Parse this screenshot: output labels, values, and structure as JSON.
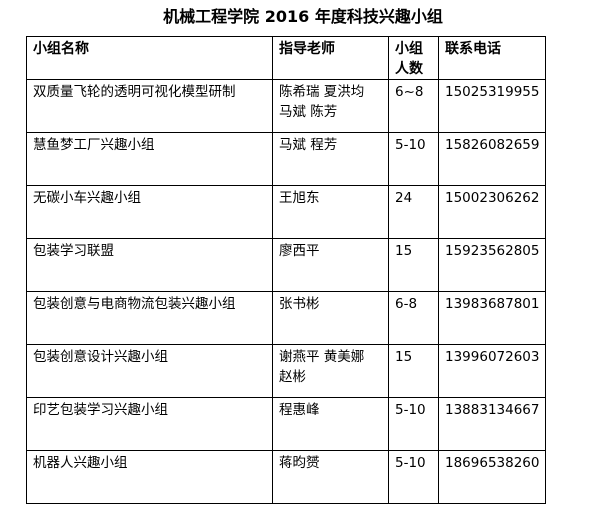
{
  "title": "机械工程学院 2016 年度科技兴趣小组",
  "table": {
    "headers": [
      "小组名称",
      "指导老师",
      "小组人数",
      "联系电话"
    ],
    "rows": [
      {
        "name": "双质量飞轮的透明可视化模型研制",
        "teacher": "陈希瑞  夏洪均 马斌    陈芳",
        "size": "6~8",
        "phone": "15025319955"
      },
      {
        "name": "慧鱼梦工厂兴趣小组",
        "teacher": "马斌      程芳",
        "size": "5-10",
        "phone": "15826082659"
      },
      {
        "name": "无碳小车兴趣小组",
        "teacher": "王旭东",
        "size": "24",
        "phone": "15002306262"
      },
      {
        "name": "包装学习联盟",
        "teacher": "廖西平",
        "size": "15",
        "phone": "15923562805"
      },
      {
        "name": "包装创意与电商物流包装兴趣小组",
        "teacher": "张书彬",
        "size": "6-8",
        "phone": "13983687801"
      },
      {
        "name": "包装创意设计兴趣小组",
        "teacher": "谢燕平  黄美娜 赵彬",
        "size": "15",
        "phone": "13996072603"
      },
      {
        "name": "印艺包装学习兴趣小组",
        "teacher": "程惠峰",
        "size": "5-10",
        "phone": "13883134667"
      },
      {
        "name": "机器人兴趣小组",
        "teacher": "蒋昀赟",
        "size": "5-10",
        "phone": "18696538260"
      }
    ]
  }
}
